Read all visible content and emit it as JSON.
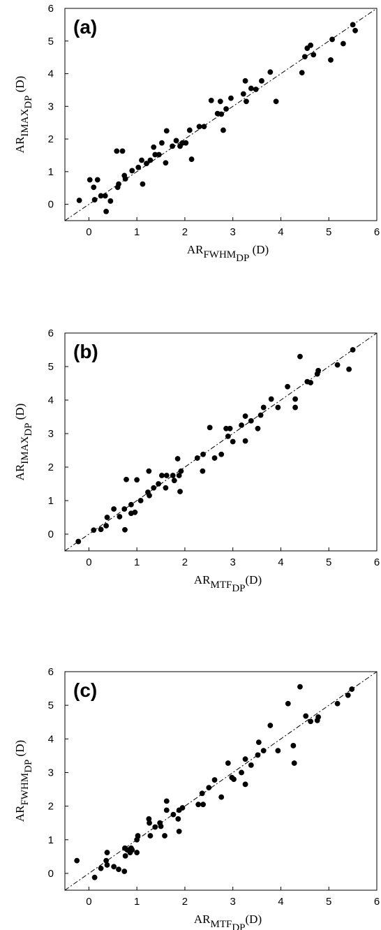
{
  "chart_data": [
    {
      "type": "scatter",
      "panel_label": "(a)",
      "xlabel": {
        "base": "AR",
        "sub": "FWHM",
        "subsub": "DP",
        "suffix": " (D)"
      },
      "ylabel": {
        "base": "AR",
        "sub": "IMAX",
        "subsub": "DP",
        "suffix": " (D)"
      },
      "xlim": [
        -0.5,
        6
      ],
      "ylim": [
        -0.5,
        6
      ],
      "xticks": [
        0,
        1,
        2,
        3,
        4,
        5,
        6
      ],
      "yticks": [
        0,
        1,
        2,
        3,
        4,
        5,
        6
      ],
      "identity_line": true,
      "points": [
        [
          -0.2,
          0.12
        ],
        [
          0.02,
          0.75
        ],
        [
          0.1,
          0.52
        ],
        [
          0.12,
          0.14
        ],
        [
          0.18,
          0.75
        ],
        [
          0.25,
          0.26
        ],
        [
          0.34,
          0.26
        ],
        [
          0.36,
          -0.22
        ],
        [
          0.45,
          0.1
        ],
        [
          0.58,
          1.63
        ],
        [
          0.6,
          0.52
        ],
        [
          0.62,
          0.62
        ],
        [
          0.7,
          1.63
        ],
        [
          0.74,
          0.88
        ],
        [
          0.76,
          0.78
        ],
        [
          0.9,
          1.03
        ],
        [
          1.03,
          1.13
        ],
        [
          1.1,
          1.35
        ],
        [
          1.12,
          0.62
        ],
        [
          1.2,
          1.25
        ],
        [
          1.28,
          1.35
        ],
        [
          1.35,
          1.75
        ],
        [
          1.38,
          1.52
        ],
        [
          1.46,
          1.52
        ],
        [
          1.52,
          1.88
        ],
        [
          1.6,
          1.27
        ],
        [
          1.62,
          2.25
        ],
        [
          1.74,
          1.78
        ],
        [
          1.82,
          1.95
        ],
        [
          1.9,
          1.78
        ],
        [
          1.95,
          1.88
        ],
        [
          2.02,
          1.88
        ],
        [
          2.1,
          2.27
        ],
        [
          2.14,
          1.38
        ],
        [
          2.3,
          2.38
        ],
        [
          2.4,
          2.38
        ],
        [
          2.55,
          3.18
        ],
        [
          2.68,
          2.78
        ],
        [
          2.74,
          3.15
        ],
        [
          2.76,
          2.76
        ],
        [
          2.8,
          2.27
        ],
        [
          2.86,
          2.92
        ],
        [
          2.96,
          3.25
        ],
        [
          3.22,
          3.38
        ],
        [
          3.26,
          3.78
        ],
        [
          3.28,
          3.15
        ],
        [
          3.38,
          3.55
        ],
        [
          3.48,
          3.52
        ],
        [
          3.6,
          3.78
        ],
        [
          3.78,
          4.05
        ],
        [
          3.9,
          3.15
        ],
        [
          4.44,
          4.03
        ],
        [
          4.5,
          4.52
        ],
        [
          4.55,
          4.78
        ],
        [
          4.62,
          4.87
        ],
        [
          4.68,
          4.58
        ],
        [
          5.04,
          4.42
        ],
        [
          5.07,
          5.05
        ],
        [
          5.3,
          4.92
        ],
        [
          5.5,
          5.5
        ],
        [
          5.55,
          5.32
        ]
      ]
    },
    {
      "type": "scatter",
      "panel_label": "(b)",
      "xlabel": {
        "base": "AR",
        "sub": "MTF",
        "subsub": "DP",
        "suffix": "(D)"
      },
      "ylabel": {
        "base": "AR",
        "sub": "IMAX",
        "subsub": "DP",
        "suffix": " (D)"
      },
      "xlim": [
        -0.5,
        6
      ],
      "ylim": [
        -0.5,
        6
      ],
      "xticks": [
        0,
        1,
        2,
        3,
        4,
        5,
        6
      ],
      "yticks": [
        0,
        1,
        2,
        3,
        4,
        5,
        6
      ],
      "identity_line": true,
      "points": [
        [
          -0.22,
          -0.22
        ],
        [
          0.1,
          0.12
        ],
        [
          0.25,
          0.14
        ],
        [
          0.36,
          0.25
        ],
        [
          0.38,
          0.5
        ],
        [
          0.52,
          0.75
        ],
        [
          0.64,
          0.52
        ],
        [
          0.74,
          0.75
        ],
        [
          0.75,
          0.13
        ],
        [
          0.78,
          1.63
        ],
        [
          0.88,
          0.62
        ],
        [
          0.88,
          0.88
        ],
        [
          0.96,
          0.65
        ],
        [
          1.0,
          1.62
        ],
        [
          1.08,
          1.0
        ],
        [
          1.23,
          1.25
        ],
        [
          1.25,
          1.88
        ],
        [
          1.26,
          1.15
        ],
        [
          1.35,
          1.38
        ],
        [
          1.45,
          1.5
        ],
        [
          1.52,
          1.75
        ],
        [
          1.6,
          1.38
        ],
        [
          1.62,
          1.75
        ],
        [
          1.75,
          1.75
        ],
        [
          1.78,
          1.6
        ],
        [
          1.85,
          2.25
        ],
        [
          1.88,
          1.75
        ],
        [
          1.9,
          1.27
        ],
        [
          1.92,
          1.88
        ],
        [
          2.26,
          2.27
        ],
        [
          2.37,
          1.88
        ],
        [
          2.38,
          2.38
        ],
        [
          2.52,
          3.18
        ],
        [
          2.62,
          2.27
        ],
        [
          2.76,
          2.38
        ],
        [
          2.86,
          3.15
        ],
        [
          2.9,
          2.92
        ],
        [
          2.94,
          3.15
        ],
        [
          3.0,
          2.76
        ],
        [
          3.18,
          3.25
        ],
        [
          3.26,
          3.52
        ],
        [
          3.26,
          2.78
        ],
        [
          3.38,
          3.38
        ],
        [
          3.52,
          3.15
        ],
        [
          3.58,
          3.55
        ],
        [
          3.64,
          3.78
        ],
        [
          3.8,
          4.03
        ],
        [
          3.94,
          3.78
        ],
        [
          4.14,
          4.4
        ],
        [
          4.3,
          3.78
        ],
        [
          4.3,
          4.03
        ],
        [
          4.4,
          5.3
        ],
        [
          4.55,
          4.55
        ],
        [
          4.62,
          4.52
        ],
        [
          4.76,
          4.78
        ],
        [
          4.78,
          4.88
        ],
        [
          5.18,
          5.05
        ],
        [
          5.42,
          4.92
        ],
        [
          5.5,
          5.5
        ]
      ]
    },
    {
      "type": "scatter",
      "panel_label": "(c)",
      "xlabel": {
        "base": "AR",
        "sub": "MTF",
        "subsub": "DP",
        "suffix": "(D)"
      },
      "ylabel": {
        "base": "AR",
        "sub": "FWHM",
        "subsub": "DP",
        "suffix": " (D)"
      },
      "xlim": [
        -0.5,
        6
      ],
      "ylim": [
        -0.5,
        6
      ],
      "xticks": [
        0,
        1,
        2,
        3,
        4,
        5,
        6
      ],
      "yticks": [
        0,
        1,
        2,
        3,
        4,
        5,
        6
      ],
      "identity_line": true,
      "points": [
        [
          -0.25,
          0.38
        ],
        [
          0.12,
          -0.12
        ],
        [
          0.25,
          0.15
        ],
        [
          0.36,
          0.38
        ],
        [
          0.38,
          0.25
        ],
        [
          0.38,
          0.62
        ],
        [
          0.52,
          0.2
        ],
        [
          0.62,
          0.12
        ],
        [
          0.74,
          0.06
        ],
        [
          0.75,
          0.75
        ],
        [
          0.76,
          0.52
        ],
        [
          0.8,
          0.7
        ],
        [
          0.86,
          0.62
        ],
        [
          0.88,
          0.75
        ],
        [
          0.9,
          0.7
        ],
        [
          1.0,
          0.62
        ],
        [
          1.0,
          1.0
        ],
        [
          1.02,
          1.12
        ],
        [
          1.25,
          1.62
        ],
        [
          1.26,
          1.5
        ],
        [
          1.28,
          1.12
        ],
        [
          1.38,
          1.38
        ],
        [
          1.48,
          1.5
        ],
        [
          1.5,
          1.4
        ],
        [
          1.58,
          1.12
        ],
        [
          1.62,
          2.15
        ],
        [
          1.62,
          1.88
        ],
        [
          1.76,
          1.75
        ],
        [
          1.86,
          1.62
        ],
        [
          1.88,
          1.25
        ],
        [
          1.88,
          1.88
        ],
        [
          1.95,
          1.95
        ],
        [
          2.28,
          2.05
        ],
        [
          2.36,
          2.38
        ],
        [
          2.38,
          2.05
        ],
        [
          2.5,
          2.55
        ],
        [
          2.62,
          2.78
        ],
        [
          2.76,
          2.27
        ],
        [
          2.9,
          3.28
        ],
        [
          2.98,
          2.85
        ],
        [
          3.02,
          2.8
        ],
        [
          3.18,
          3.0
        ],
        [
          3.26,
          3.4
        ],
        [
          3.26,
          2.65
        ],
        [
          3.38,
          3.22
        ],
        [
          3.52,
          3.52
        ],
        [
          3.54,
          3.9
        ],
        [
          3.64,
          3.65
        ],
        [
          3.78,
          4.4
        ],
        [
          3.94,
          3.65
        ],
        [
          4.15,
          5.05
        ],
        [
          4.26,
          3.8
        ],
        [
          4.28,
          3.28
        ],
        [
          4.4,
          5.55
        ],
        [
          4.52,
          4.68
        ],
        [
          4.62,
          4.52
        ],
        [
          4.76,
          4.55
        ],
        [
          4.78,
          4.65
        ],
        [
          5.18,
          5.05
        ],
        [
          5.4,
          5.3
        ],
        [
          5.48,
          5.48
        ]
      ]
    }
  ]
}
